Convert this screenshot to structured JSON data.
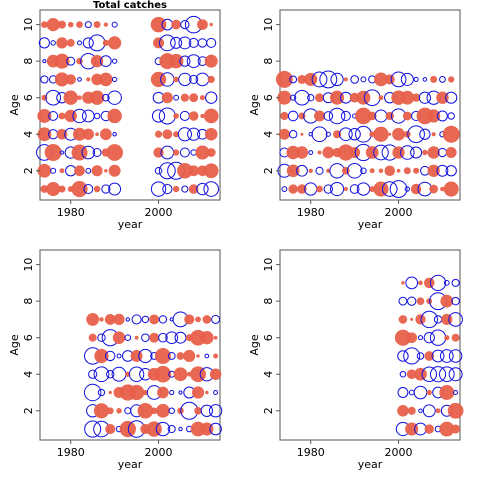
{
  "chart_data": [
    {
      "type": "scatter",
      "title": "Total catches",
      "xlabel": "year",
      "ylabel": "Age",
      "xlim": [
        1973,
        2014
      ],
      "ylim": [
        0.4,
        10.8
      ],
      "xticks": [
        1980,
        2000
      ],
      "yticks": [
        2,
        4,
        6,
        8,
        10
      ],
      "colors": {
        "positive": "#e8604a",
        "negative": "#1010e0"
      },
      "years": [
        1974,
        1976,
        1978,
        1980,
        1982,
        1984,
        1986,
        1988,
        1990,
        2000,
        2002,
        2004,
        2006,
        2008,
        2010,
        2012
      ],
      "ages": [
        1,
        2,
        3,
        4,
        5,
        6,
        7,
        8,
        9,
        10
      ],
      "pattern_seed": 1
    },
    {
      "type": "scatter",
      "title": "",
      "xlabel": "year",
      "ylabel": "Age",
      "xlim": [
        1973,
        2014
      ],
      "ylim": [
        0.4,
        10.8
      ],
      "xticks": [
        1980,
        2000
      ],
      "yticks": [
        2,
        4,
        6,
        8,
        10
      ],
      "colors": {
        "positive": "#e8604a",
        "negative": "#1010e0"
      },
      "years": [
        1974,
        1976,
        1978,
        1980,
        1982,
        1984,
        1986,
        1988,
        1990,
        1992,
        1994,
        1996,
        1998,
        2000,
        2002,
        2004,
        2006,
        2008,
        2010,
        2012
      ],
      "ages": [
        1,
        2,
        3,
        4,
        5,
        6,
        7
      ],
      "pattern_seed": 2
    },
    {
      "type": "scatter",
      "title": "",
      "xlabel": "year",
      "ylabel": "Age",
      "xlim": [
        1973,
        2014
      ],
      "ylim": [
        0.4,
        10.8
      ],
      "xticks": [
        1980,
        2000
      ],
      "yticks": [
        2,
        4,
        6,
        8,
        10
      ],
      "colors": {
        "positive": "#e8604a",
        "negative": "#1010e0"
      },
      "years": [
        1985,
        1987,
        1989,
        1991,
        1993,
        1995,
        1997,
        1999,
        2001,
        2003,
        2005,
        2007,
        2009,
        2011,
        2013
      ],
      "ages": [
        1,
        2,
        3,
        4,
        5,
        6,
        7
      ],
      "pattern_seed": 3
    },
    {
      "type": "scatter",
      "title": "",
      "xlabel": "year",
      "ylabel": "Age",
      "xlim": [
        1973,
        2014
      ],
      "ylim": [
        0.4,
        10.8
      ],
      "xticks": [
        1980,
        2000
      ],
      "yticks": [
        2,
        4,
        6,
        8,
        10
      ],
      "colors": {
        "positive": "#e8604a",
        "negative": "#1010e0"
      },
      "years": [
        2001,
        2003,
        2005,
        2007,
        2009,
        2011,
        2013
      ],
      "ages": [
        1,
        2,
        3,
        4,
        5,
        6,
        7,
        8,
        9
      ],
      "pattern_seed": 4
    }
  ]
}
